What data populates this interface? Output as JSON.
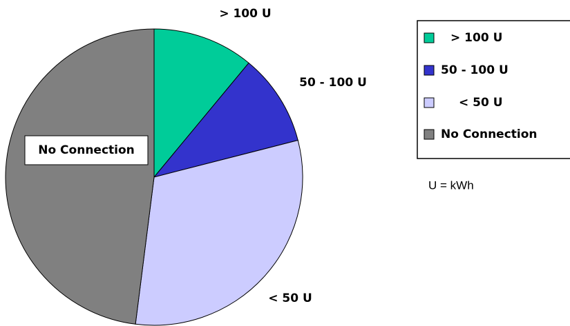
{
  "chart_data": {
    "type": "pie",
    "categories": [
      "> 100 U",
      "50 - 100 U",
      "< 50 U",
      "No Connection"
    ],
    "values": [
      11,
      10,
      31,
      48
    ],
    "colors": [
      "#00cc99",
      "#3333cc",
      "#ccccff",
      "#808080"
    ],
    "annotation": "U = kWh",
    "legend": "right"
  }
}
